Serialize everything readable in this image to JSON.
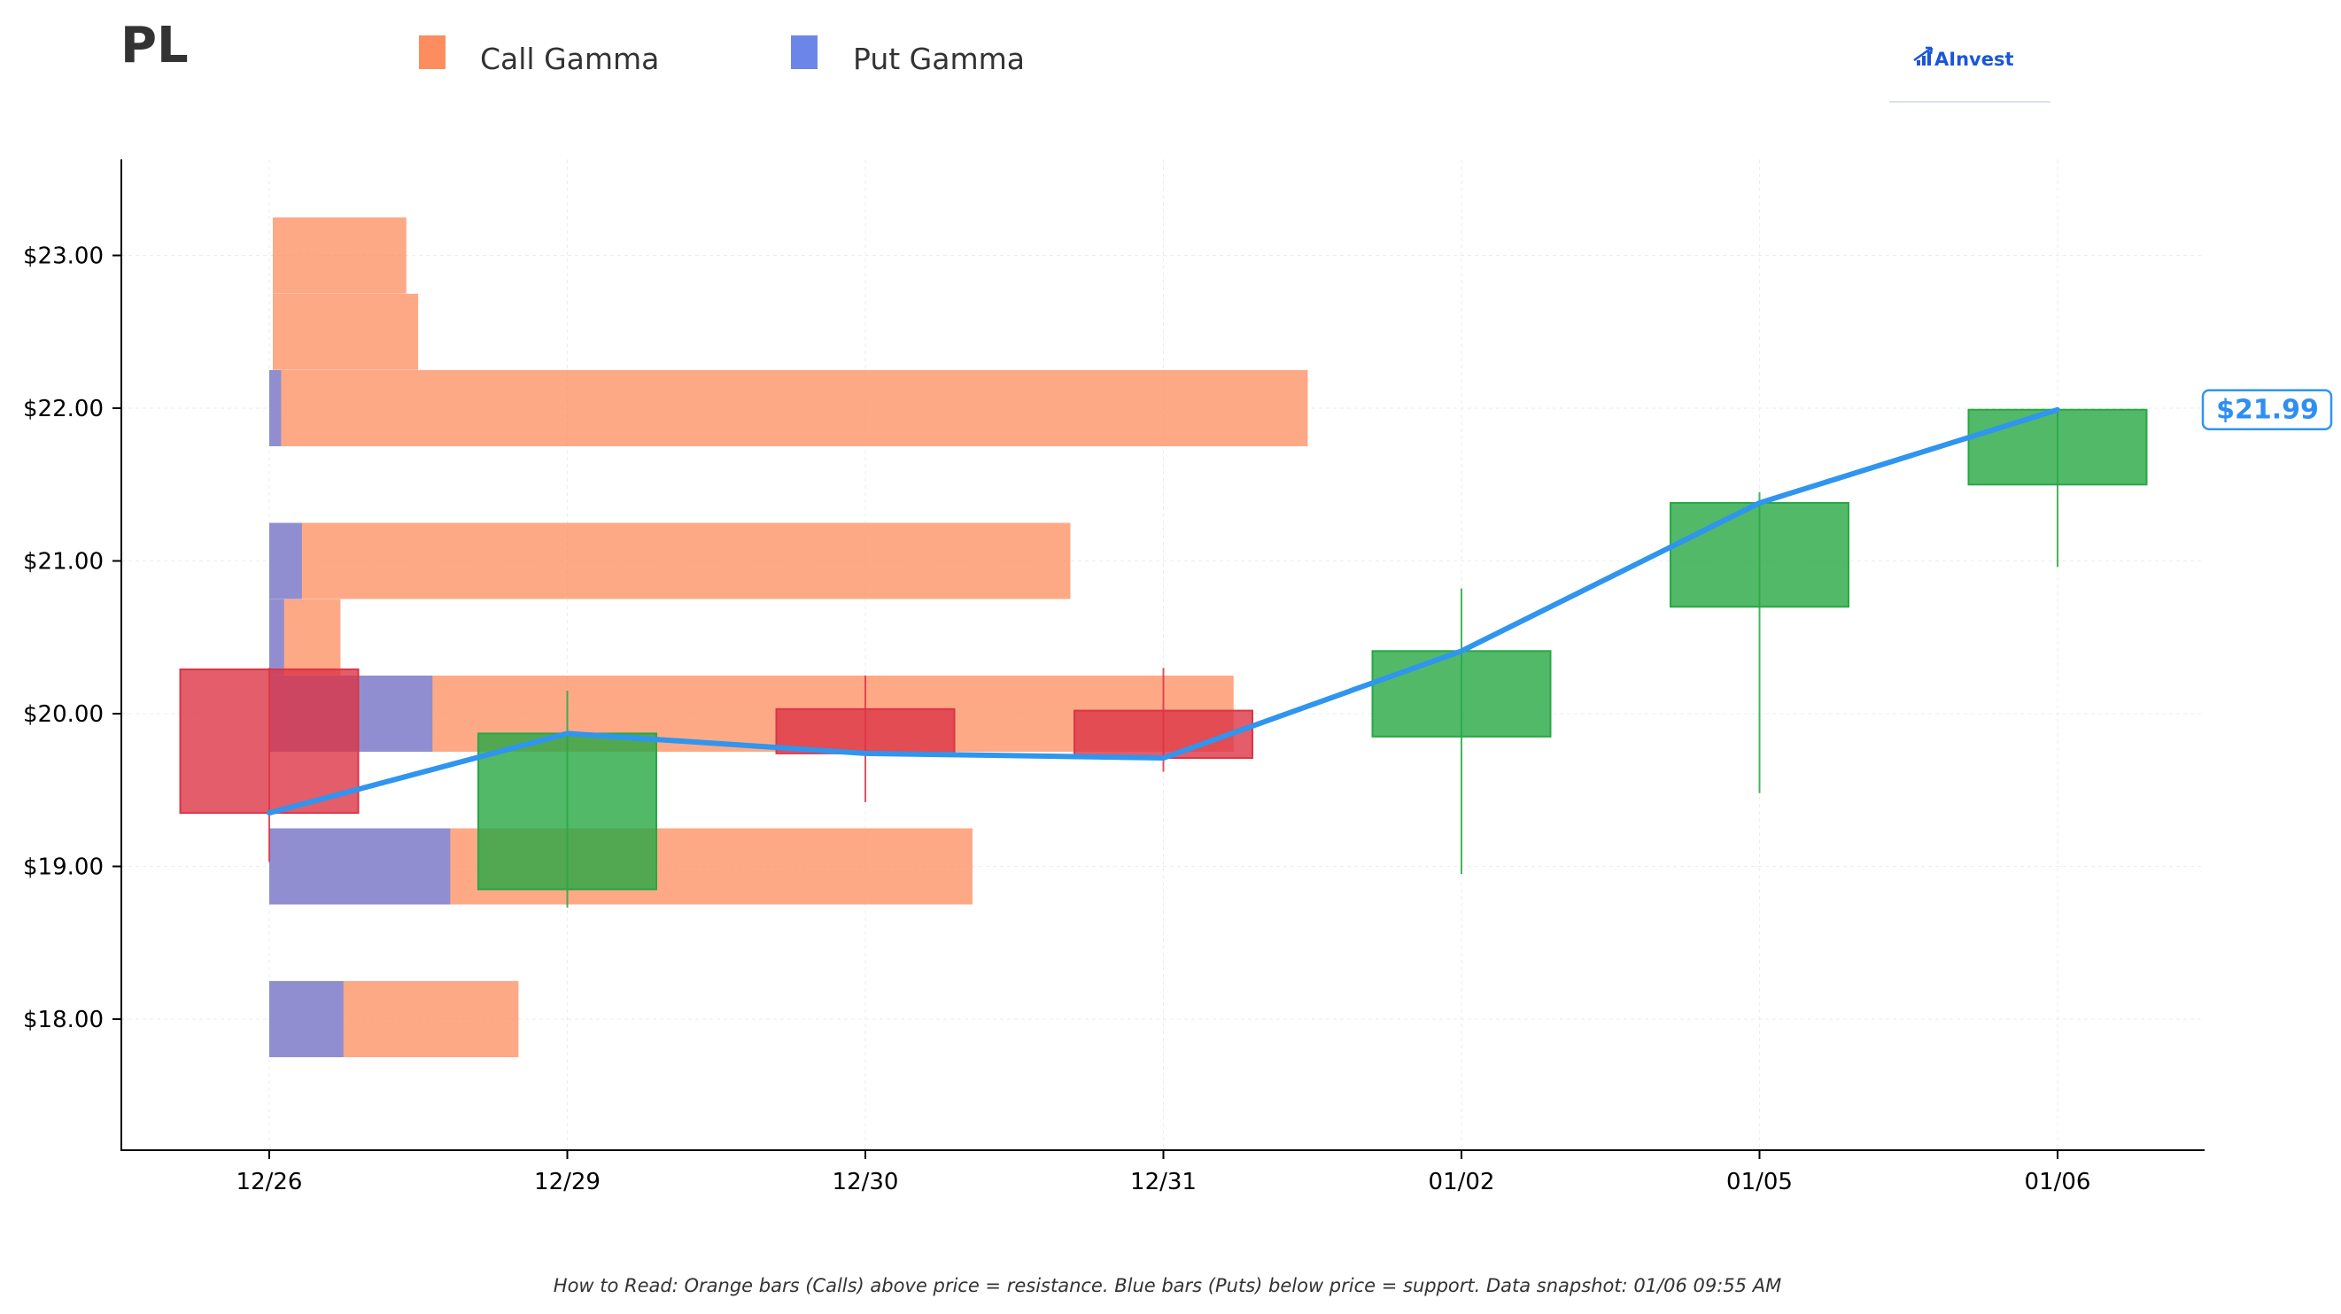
{
  "ticker": "PL",
  "legend": [
    {
      "label": "Call Gamma",
      "color": "#fd8c5e"
    },
    {
      "label": "Put Gamma",
      "color": "#6b86e8"
    }
  ],
  "brand": {
    "text": "AInvest",
    "icon": "bar-chart-arrow-icon",
    "color": "#1a56db"
  },
  "footnote": "How to Read: Orange bars (Calls) above price = resistance. Blue bars (Puts) below price = support. Data snapshot: 01/06 09:55 AM",
  "chart_data": {
    "type": "candlestick",
    "title": "PL",
    "categories": [
      "12/26",
      "12/29",
      "12/30",
      "12/31",
      "01/02",
      "01/05",
      "01/06"
    ],
    "y_ticks": [
      "$18.00",
      "$19.00",
      "$20.00",
      "$21.00",
      "$22.00",
      "$23.00"
    ],
    "y_tick_values": [
      18,
      19,
      20,
      21,
      22,
      23
    ],
    "ylim": [
      17.13,
      23.65
    ],
    "grid": true,
    "legend_position": "top",
    "candles": [
      {
        "date": "12/26",
        "open": 20.29,
        "high": 20.3,
        "low": 19.03,
        "close": 19.35
      },
      {
        "date": "12/29",
        "open": 18.85,
        "high": 20.15,
        "low": 18.73,
        "close": 19.87
      },
      {
        "date": "12/30",
        "open": 20.03,
        "high": 20.25,
        "low": 19.42,
        "close": 19.74
      },
      {
        "date": "12/31",
        "open": 20.02,
        "high": 20.3,
        "low": 19.62,
        "close": 19.71
      },
      {
        "date": "01/02",
        "open": 19.85,
        "high": 20.82,
        "low": 18.95,
        "close": 20.41
      },
      {
        "date": "01/05",
        "open": 20.7,
        "high": 21.45,
        "low": 19.48,
        "close": 21.38
      },
      {
        "date": "01/06",
        "open": 21.5,
        "high": 22.0,
        "low": 20.96,
        "close": 21.99
      }
    ],
    "price_line": {
      "color": "#2f95ef",
      "values": [
        19.35,
        19.87,
        19.74,
        19.71,
        20.41,
        21.38,
        21.99
      ],
      "last_label": "$21.99"
    },
    "gamma_levels": [
      {
        "strike": 23.0,
        "call": 0.45,
        "put": 0.0
      },
      {
        "strike": 22.5,
        "call": 0.49,
        "put": 0.0
      },
      {
        "strike": 22.0,
        "call": 3.5,
        "put": 0.04
      },
      {
        "strike": 21.0,
        "call": 2.7,
        "put": 0.11
      },
      {
        "strike": 20.5,
        "call": 0.24,
        "put": 0.05
      },
      {
        "strike": 20.0,
        "call": 3.25,
        "put": 0.55
      },
      {
        "strike": 19.0,
        "call": 2.37,
        "put": 0.61
      },
      {
        "strike": 18.0,
        "call": 0.84,
        "put": 0.25
      }
    ],
    "colors": {
      "up": "#27a844",
      "down": "#dc3545",
      "call": "#fd8c5e",
      "put": "#6b86e8"
    }
  }
}
